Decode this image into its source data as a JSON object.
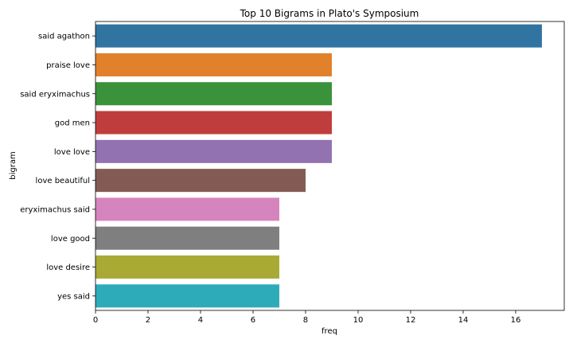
{
  "chart_data": {
    "type": "bar",
    "orientation": "horizontal",
    "title": "Top 10 Bigrams in Plato's Symposium",
    "xlabel": "freq",
    "ylabel": "bigram",
    "categories": [
      "said agathon",
      "praise love",
      "said eryximachus",
      "god men",
      "love love",
      "love beautiful",
      "eryximachus said",
      "love good",
      "love desire",
      "yes said"
    ],
    "values": [
      17,
      9,
      9,
      9,
      9,
      8,
      7,
      7,
      7,
      7
    ],
    "colors": [
      "#3274a1",
      "#e1812c",
      "#3a923a",
      "#c03d3e",
      "#9372b2",
      "#845b53",
      "#d684bd",
      "#7f7f7f",
      "#a9aa35",
      "#2eabb8"
    ],
    "xlim": [
      0,
      17.85
    ],
    "xticks": [
      0,
      2,
      4,
      6,
      8,
      10,
      12,
      14,
      16
    ],
    "grid": false,
    "legend": "none"
  }
}
